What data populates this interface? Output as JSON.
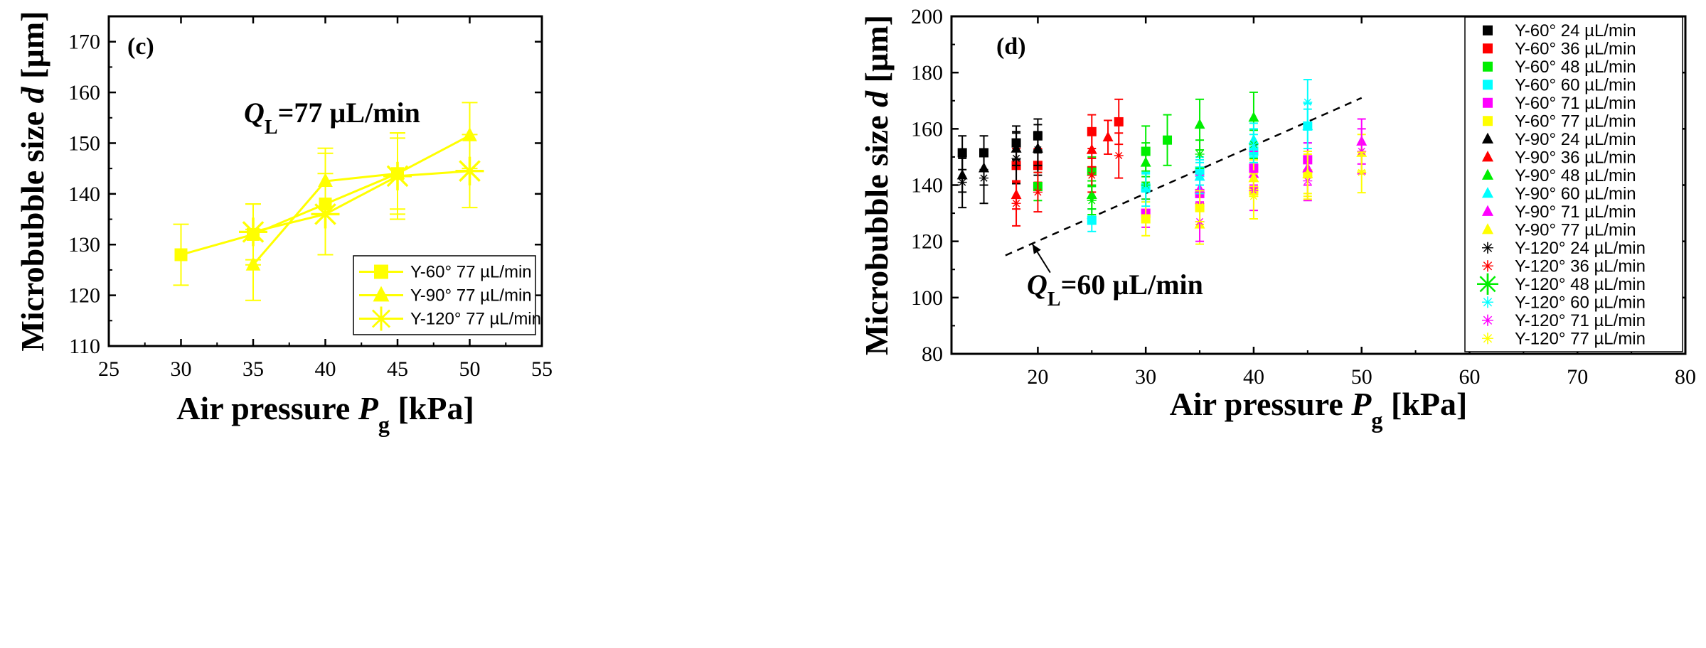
{
  "colors": {
    "yellow": "#ffff00",
    "black": "#000000",
    "red": "#ff0000",
    "green": "#00ee00",
    "cyan": "#00ffff",
    "magenta": "#ff00ff"
  },
  "chart_data": [
    {
      "type": "line",
      "panel_label": "(c)",
      "title": "",
      "xlabel": "Air pressure P_g [kPa]",
      "ylabel": "Microbubble size d [µm]",
      "xlim": [
        25,
        55
      ],
      "ylim": [
        110,
        175
      ],
      "xticks": [
        25,
        30,
        35,
        40,
        45,
        50,
        55
      ],
      "yticks": [
        110,
        120,
        130,
        140,
        150,
        160,
        170
      ],
      "annotation": "Q_L=77 µL/min",
      "legend_position": "bottom-right",
      "series": [
        {
          "name": "Y-60° 77 µL/min",
          "marker": "square",
          "color": "#ffff00",
          "x": [
            30,
            35,
            40,
            45
          ],
          "y": [
            128,
            132,
            138,
            144
          ],
          "err": [
            6,
            6,
            10,
            7
          ]
        },
        {
          "name": "Y-90° 77 µL/min",
          "marker": "triangle",
          "color": "#ffff00",
          "x": [
            35,
            40,
            45,
            50
          ],
          "y": [
            126,
            142.5,
            144,
            151.5
          ],
          "err": [
            7,
            6.5,
            8,
            6.5
          ]
        },
        {
          "name": "Y-120° 77 µL/min",
          "marker": "asterisk",
          "color": "#ffff00",
          "x": [
            35,
            40,
            45,
            50
          ],
          "y": [
            132.5,
            136,
            143.5,
            144.5
          ],
          "err": [
            5.5,
            8,
            8.5,
            7.2
          ]
        }
      ]
    },
    {
      "type": "scatter",
      "panel_label": "(d)",
      "title": "",
      "xlabel": "Air pressure P_g [kPa]",
      "ylabel": "Microbubble size d [µm]",
      "xlim": [
        12,
        80
      ],
      "ylim": [
        80,
        200
      ],
      "xticks": [
        20,
        30,
        40,
        50,
        60,
        70,
        80
      ],
      "yticks": [
        80,
        100,
        120,
        140,
        160,
        180,
        200
      ],
      "annotation": "Q_L=60 µL/min",
      "dashed_line": {
        "x": [
          17,
          50
        ],
        "y": [
          115,
          171
        ]
      },
      "legend_position": "top-right",
      "series": [
        {
          "name": "Y-60° 24 µL/min",
          "marker": "square",
          "color": "#000000",
          "x": [
            13,
            15,
            18,
            20
          ],
          "y": [
            151.5,
            151.5,
            155,
            157.5
          ],
          "err": [
            6,
            6,
            6,
            6
          ]
        },
        {
          "name": "Y-60° 36 µL/min",
          "marker": "square",
          "color": "#ff0000",
          "x": [
            18,
            20,
            25,
            27.5
          ],
          "y": [
            147,
            147,
            159,
            162.5
          ],
          "err": [
            6,
            6,
            6,
            8
          ]
        },
        {
          "name": "Y-60° 48 µL/min",
          "marker": "square",
          "color": "#00ee00",
          "x": [
            20,
            25,
            30,
            32
          ],
          "y": [
            139.5,
            145,
            152,
            156
          ],
          "err": [
            5,
            5,
            9,
            9
          ]
        },
        {
          "name": "Y-60° 60 µL/min",
          "marker": "square",
          "color": "#00ffff",
          "x": [
            25,
            30,
            35,
            40,
            45
          ],
          "y": [
            127.5,
            139,
            145,
            152,
            161
          ],
          "err": [
            4,
            5,
            5,
            6,
            6
          ]
        },
        {
          "name": "Y-60° 71 µL/min",
          "marker": "square",
          "color": "#ff00ff",
          "x": [
            30,
            35,
            40,
            45
          ],
          "y": [
            130,
            137,
            146,
            149
          ],
          "err": [
            5,
            5,
            6,
            6
          ]
        },
        {
          "name": "Y-60° 77 µL/min",
          "marker": "square",
          "color": "#ffff00",
          "x": [
            30,
            35,
            40,
            45
          ],
          "y": [
            128,
            132,
            138,
            144
          ],
          "err": [
            6,
            6,
            10,
            7
          ]
        },
        {
          "name": "Y-90° 24 µL/min",
          "marker": "triangle",
          "color": "#000000",
          "x": [
            13,
            15,
            18,
            20
          ],
          "y": [
            143.5,
            146,
            153,
            153
          ],
          "err": [
            6,
            6,
            6,
            6
          ]
        },
        {
          "name": "Y-90° 36 µL/min",
          "marker": "triangle",
          "color": "#ff0000",
          "x": [
            18,
            25,
            26.5
          ],
          "y": [
            136.5,
            152.5,
            157
          ],
          "err": [
            5,
            6,
            6
          ]
        },
        {
          "name": "Y-90° 48 µL/min",
          "marker": "triangle",
          "color": "#00ee00",
          "x": [
            25,
            30,
            35,
            40
          ],
          "y": [
            136.5,
            148,
            161.5,
            164
          ],
          "err": [
            5,
            7,
            9,
            9
          ]
        },
        {
          "name": "Y-90° 60 µL/min",
          "marker": "triangle",
          "color": "#00ffff",
          "x": [
            35,
            40,
            45
          ],
          "y": [
            143,
            156,
            161
          ],
          "err": [
            5,
            6,
            8
          ]
        },
        {
          "name": "Y-90° 71 µL/min",
          "marker": "triangle",
          "color": "#ff00ff",
          "x": [
            35,
            40,
            45,
            50
          ],
          "y": [
            138.5,
            144,
            146,
            155.5
          ],
          "err": [
            5,
            5,
            6,
            8
          ]
        },
        {
          "name": "Y-90° 77 µL/min",
          "marker": "triangle",
          "color": "#ffff00",
          "x": [
            35,
            40,
            45,
            50
          ],
          "y": [
            126,
            142.5,
            144,
            151.5
          ],
          "err": [
            7,
            6.5,
            8,
            6.5
          ]
        },
        {
          "name": "Y-120° 24 µL/min",
          "marker": "asterisk",
          "color": "#000000",
          "x": [
            13,
            15,
            18,
            20
          ],
          "y": [
            141,
            142.5,
            149.5,
            152.5
          ],
          "err": [
            9,
            9,
            9,
            9
          ]
        },
        {
          "name": "Y-120° 36 µL/min",
          "marker": "asterisk",
          "color": "#ff0000",
          "x": [
            18,
            20,
            25,
            27.5
          ],
          "y": [
            133.5,
            137.5,
            143.5,
            150.5
          ],
          "err": [
            8,
            7,
            6,
            8
          ]
        },
        {
          "name": "Y-120° 48 µL/min",
          "marker": "asterisk",
          "color": "#00ee00",
          "x": [
            25,
            30,
            35,
            40
          ],
          "y": [
            134.5,
            140,
            151,
            154.5
          ],
          "err": [
            5,
            5,
            5,
            5
          ]
        },
        {
          "name": "Y-120° 60 µL/min",
          "marker": "asterisk",
          "color": "#00ffff",
          "x": [
            30,
            35,
            40,
            45
          ],
          "y": [
            138.5,
            143,
            154,
            169.5
          ],
          "err": [
            6,
            6,
            6,
            8
          ]
        },
        {
          "name": "Y-120° 71 µL/min",
          "marker": "asterisk",
          "color": "#ff00ff",
          "x": [
            35,
            40,
            45,
            50
          ],
          "y": [
            127,
            138,
            141.5,
            152
          ],
          "err": [
            7,
            7,
            7,
            8
          ]
        },
        {
          "name": "Y-120° 77 µL/min",
          "marker": "asterisk",
          "color": "#ffff00",
          "x": [
            35,
            40,
            45,
            50
          ],
          "y": [
            132.5,
            136,
            143.5,
            144.5
          ],
          "err": [
            5.5,
            8,
            8.5,
            7.2
          ]
        }
      ]
    }
  ]
}
